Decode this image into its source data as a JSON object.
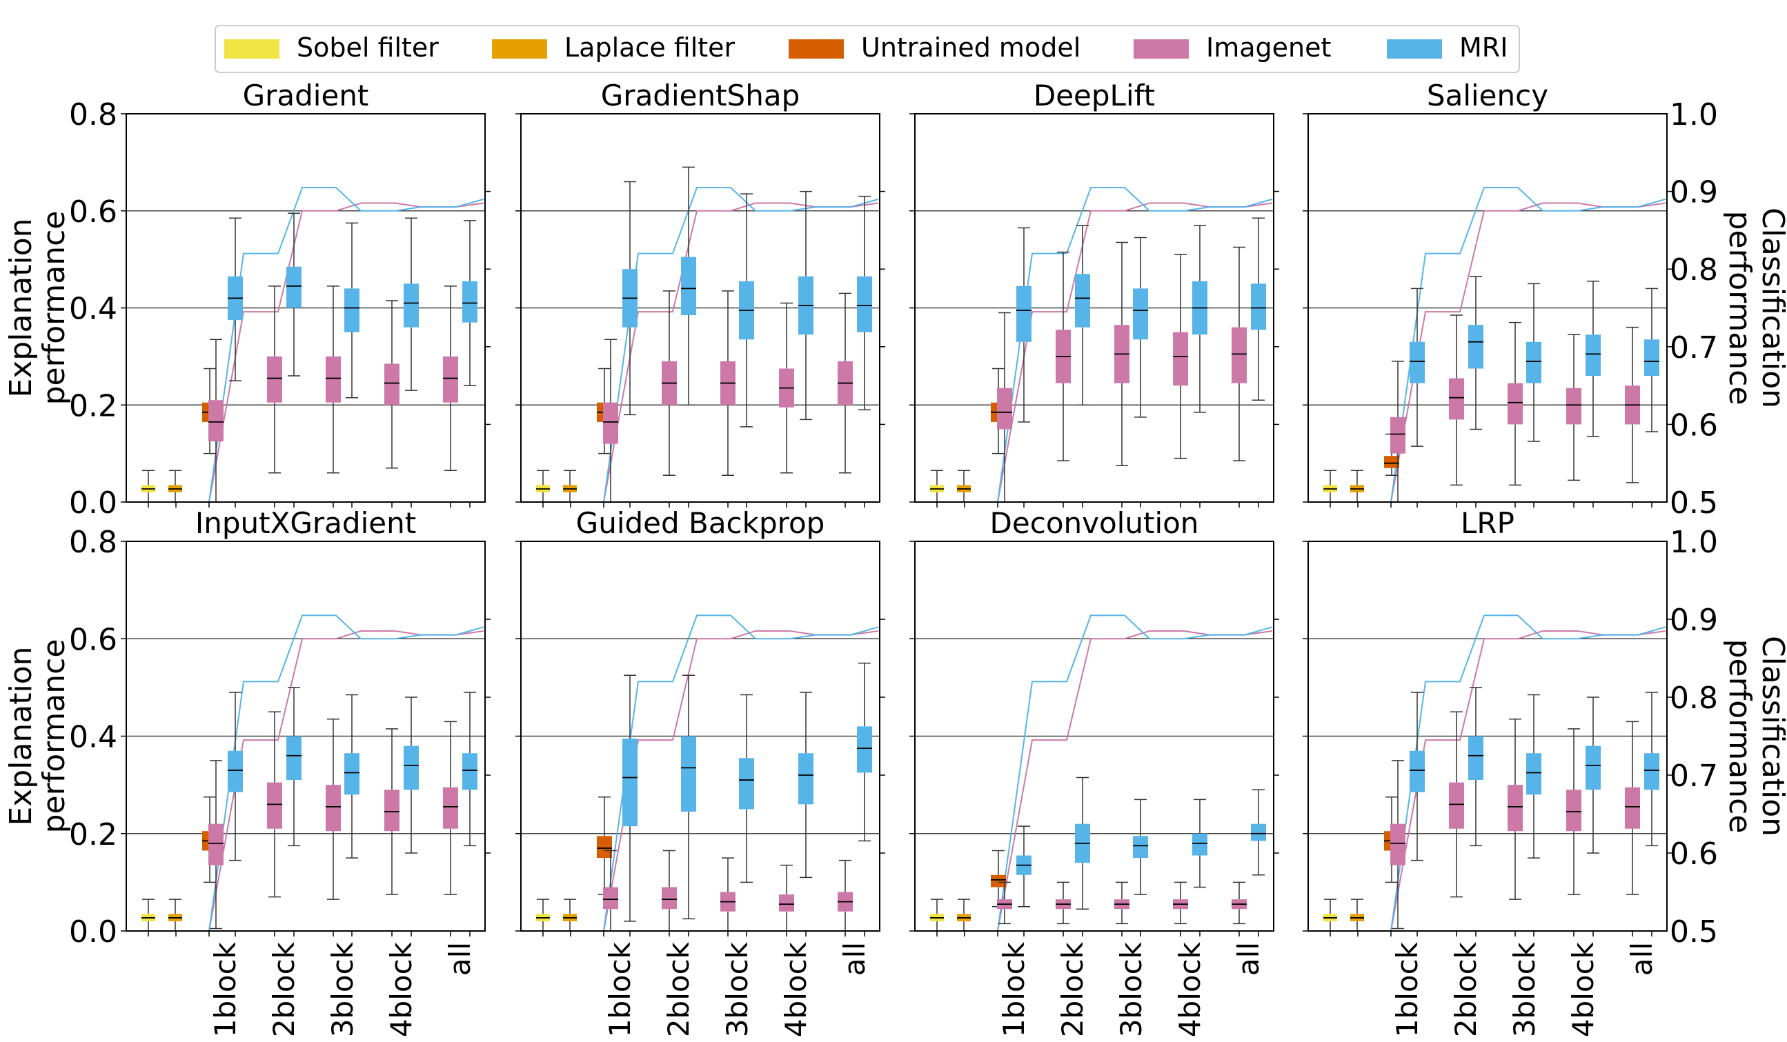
{
  "legend": [
    {
      "label": "Sobel filter",
      "color": "#f0e442"
    },
    {
      "label": "Laplace filter",
      "color": "#e69f00"
    },
    {
      "label": "Untrained model",
      "color": "#d55e00"
    },
    {
      "label": "Imagenet",
      "color": "#cc79a7"
    },
    {
      "label": "MRI",
      "color": "#56b4e9"
    }
  ],
  "left_axis": {
    "label_line1": "Explanation",
    "label_line2": "performance",
    "ticks": [
      "0.0",
      "0.2",
      "0.4",
      "0.6",
      "0.8"
    ],
    "range": [
      0,
      0.8
    ]
  },
  "right_axis": {
    "label_line1": "Classification",
    "label_line2": "performance",
    "ticks": [
      "0.5",
      "0.6",
      "0.7",
      "0.8",
      "0.9",
      "1.0"
    ],
    "range": [
      0.5,
      1.0
    ]
  },
  "x_tick_labels": [
    "1block",
    "2block",
    "3block",
    "4block",
    "all"
  ],
  "chart_data": [
    {
      "type": "box+line",
      "title": "Gradient",
      "boxes": {
        "sobel": [
          0.0,
          0.02,
          0.027,
          0.035,
          0.065
        ],
        "laplace": [
          0.0,
          0.02,
          0.027,
          0.035,
          0.065
        ],
        "untrained": [
          0.1,
          0.165,
          0.185,
          0.205,
          0.275
        ],
        "imagenet": [
          [
            0.0,
            0.125,
            0.165,
            0.21,
            0.335
          ],
          [
            0.06,
            0.205,
            0.255,
            0.3,
            0.445
          ],
          [
            0.06,
            0.205,
            0.255,
            0.3,
            0.445
          ],
          [
            0.07,
            0.2,
            0.245,
            0.285,
            0.415
          ],
          [
            0.065,
            0.205,
            0.255,
            0.3,
            0.445
          ]
        ],
        "mri": [
          [
            0.25,
            0.375,
            0.42,
            0.465,
            0.585
          ],
          [
            0.26,
            0.4,
            0.445,
            0.485,
            0.595
          ],
          [
            0.215,
            0.35,
            0.4,
            0.44,
            0.575
          ],
          [
            0.23,
            0.36,
            0.41,
            0.45,
            0.585
          ],
          [
            0.24,
            0.37,
            0.41,
            0.455,
            0.58
          ]
        ]
      }
    },
    {
      "type": "box+line",
      "title": "GradientShap",
      "boxes": {
        "sobel": [
          0.0,
          0.02,
          0.027,
          0.035,
          0.065
        ],
        "laplace": [
          0.0,
          0.02,
          0.027,
          0.035,
          0.065
        ],
        "untrained": [
          0.1,
          0.165,
          0.185,
          0.205,
          0.275
        ],
        "imagenet": [
          [
            0.0,
            0.12,
            0.165,
            0.205,
            0.335
          ],
          [
            0.055,
            0.2,
            0.245,
            0.29,
            0.435
          ],
          [
            0.055,
            0.2,
            0.245,
            0.29,
            0.435
          ],
          [
            0.06,
            0.195,
            0.235,
            0.275,
            0.41
          ],
          [
            0.06,
            0.2,
            0.245,
            0.29,
            0.43
          ]
        ],
        "mri": [
          [
            0.18,
            0.36,
            0.42,
            0.48,
            0.66
          ],
          [
            0.2,
            0.385,
            0.44,
            0.505,
            0.69
          ],
          [
            0.155,
            0.335,
            0.395,
            0.455,
            0.635
          ],
          [
            0.17,
            0.345,
            0.405,
            0.465,
            0.64
          ],
          [
            0.19,
            0.35,
            0.405,
            0.465,
            0.63
          ]
        ]
      }
    },
    {
      "type": "box+line",
      "title": "DeepLift",
      "boxes": {
        "sobel": [
          0.0,
          0.02,
          0.027,
          0.035,
          0.065
        ],
        "laplace": [
          0.0,
          0.02,
          0.027,
          0.035,
          0.065
        ],
        "untrained": [
          0.1,
          0.165,
          0.185,
          0.205,
          0.275
        ],
        "imagenet": [
          [
            0.0,
            0.15,
            0.185,
            0.235,
            0.39
          ],
          [
            0.085,
            0.245,
            0.3,
            0.355,
            0.515
          ],
          [
            0.075,
            0.245,
            0.305,
            0.365,
            0.535
          ],
          [
            0.09,
            0.24,
            0.3,
            0.35,
            0.51
          ],
          [
            0.085,
            0.245,
            0.305,
            0.36,
            0.525
          ]
        ],
        "mri": [
          [
            0.165,
            0.33,
            0.395,
            0.445,
            0.565
          ],
          [
            0.2,
            0.36,
            0.42,
            0.47,
            0.57
          ],
          [
            0.175,
            0.335,
            0.395,
            0.44,
            0.545
          ],
          [
            0.185,
            0.345,
            0.4,
            0.455,
            0.57
          ],
          [
            0.21,
            0.355,
            0.4,
            0.45,
            0.585
          ]
        ]
      }
    },
    {
      "type": "box+line",
      "title": "Saliency",
      "boxes": {
        "sobel": [
          0.0,
          0.02,
          0.027,
          0.035,
          0.065
        ],
        "laplace": [
          0.0,
          0.02,
          0.027,
          0.035,
          0.065
        ],
        "untrained": [
          0.055,
          0.07,
          0.08,
          0.095,
          0.14
        ],
        "imagenet": [
          [
            0.0,
            0.1,
            0.14,
            0.175,
            0.29
          ],
          [
            0.035,
            0.17,
            0.215,
            0.255,
            0.385
          ],
          [
            0.035,
            0.16,
            0.205,
            0.245,
            0.37
          ],
          [
            0.045,
            0.16,
            0.2,
            0.235,
            0.345
          ],
          [
            0.04,
            0.16,
            0.2,
            0.24,
            0.36
          ]
        ],
        "mri": [
          [
            0.115,
            0.245,
            0.29,
            0.33,
            0.44
          ],
          [
            0.15,
            0.275,
            0.33,
            0.365,
            0.465
          ],
          [
            0.125,
            0.245,
            0.29,
            0.33,
            0.45
          ],
          [
            0.135,
            0.26,
            0.305,
            0.345,
            0.455
          ],
          [
            0.145,
            0.26,
            0.29,
            0.335,
            0.44
          ]
        ]
      }
    },
    {
      "type": "box+line",
      "title": "InputXGradient",
      "boxes": {
        "sobel": [
          0.0,
          0.02,
          0.027,
          0.035,
          0.065
        ],
        "laplace": [
          0.0,
          0.02,
          0.027,
          0.035,
          0.065
        ],
        "untrained": [
          0.1,
          0.165,
          0.185,
          0.205,
          0.275
        ],
        "imagenet": [
          [
            0.005,
            0.135,
            0.18,
            0.22,
            0.35
          ],
          [
            0.07,
            0.21,
            0.26,
            0.305,
            0.45
          ],
          [
            0.065,
            0.205,
            0.255,
            0.3,
            0.435
          ],
          [
            0.075,
            0.205,
            0.245,
            0.29,
            0.415
          ],
          [
            0.075,
            0.21,
            0.255,
            0.295,
            0.43
          ]
        ],
        "mri": [
          [
            0.145,
            0.285,
            0.33,
            0.37,
            0.49
          ],
          [
            0.175,
            0.31,
            0.36,
            0.4,
            0.5
          ],
          [
            0.15,
            0.28,
            0.325,
            0.365,
            0.485
          ],
          [
            0.16,
            0.29,
            0.34,
            0.38,
            0.48
          ],
          [
            0.175,
            0.29,
            0.33,
            0.365,
            0.49
          ]
        ]
      }
    },
    {
      "type": "box+line",
      "title": "Guided Backprop",
      "boxes": {
        "sobel": [
          0.0,
          0.02,
          0.027,
          0.035,
          0.065
        ],
        "laplace": [
          0.0,
          0.02,
          0.027,
          0.035,
          0.065
        ],
        "untrained": [
          0.075,
          0.15,
          0.17,
          0.195,
          0.275
        ],
        "imagenet": [
          [
            0.0,
            0.045,
            0.065,
            0.09,
            0.165
          ],
          [
            0.0,
            0.045,
            0.065,
            0.09,
            0.165
          ],
          [
            0.0,
            0.04,
            0.06,
            0.08,
            0.15
          ],
          [
            0.0,
            0.04,
            0.055,
            0.075,
            0.135
          ],
          [
            0.0,
            0.04,
            0.06,
            0.08,
            0.145
          ]
        ],
        "mri": [
          [
            0.02,
            0.215,
            0.315,
            0.395,
            0.525
          ],
          [
            0.025,
            0.245,
            0.335,
            0.4,
            0.525
          ],
          [
            0.1,
            0.25,
            0.31,
            0.355,
            0.485
          ],
          [
            0.11,
            0.26,
            0.32,
            0.365,
            0.49
          ],
          [
            0.185,
            0.325,
            0.375,
            0.42,
            0.55
          ]
        ]
      }
    },
    {
      "type": "box+line",
      "title": "Deconvolution",
      "boxes": {
        "sobel": [
          0.0,
          0.02,
          0.027,
          0.035,
          0.065
        ],
        "laplace": [
          0.0,
          0.02,
          0.027,
          0.035,
          0.065
        ],
        "untrained": [
          0.05,
          0.09,
          0.105,
          0.115,
          0.165
        ],
        "imagenet": [
          [
            0.015,
            0.045,
            0.055,
            0.065,
            0.1
          ],
          [
            0.015,
            0.045,
            0.055,
            0.065,
            0.1
          ],
          [
            0.015,
            0.045,
            0.055,
            0.065,
            0.1
          ],
          [
            0.015,
            0.045,
            0.055,
            0.065,
            0.1
          ],
          [
            0.015,
            0.045,
            0.055,
            0.065,
            0.1
          ]
        ],
        "mri": [
          [
            0.05,
            0.115,
            0.135,
            0.155,
            0.215
          ],
          [
            0.045,
            0.14,
            0.18,
            0.22,
            0.315
          ],
          [
            0.075,
            0.15,
            0.175,
            0.195,
            0.27
          ],
          [
            0.09,
            0.155,
            0.18,
            0.2,
            0.27
          ],
          [
            0.115,
            0.185,
            0.2,
            0.22,
            0.29
          ]
        ]
      }
    },
    {
      "type": "box+line",
      "title": "LRP",
      "boxes": {
        "sobel": [
          0.0,
          0.02,
          0.027,
          0.035,
          0.065
        ],
        "laplace": [
          0.0,
          0.02,
          0.027,
          0.035,
          0.065
        ],
        "untrained": [
          0.1,
          0.165,
          0.185,
          0.205,
          0.275
        ],
        "imagenet": [
          [
            0.005,
            0.135,
            0.18,
            0.22,
            0.35
          ],
          [
            0.07,
            0.21,
            0.26,
            0.305,
            0.45
          ],
          [
            0.065,
            0.205,
            0.255,
            0.3,
            0.435
          ],
          [
            0.075,
            0.205,
            0.245,
            0.29,
            0.415
          ],
          [
            0.075,
            0.21,
            0.255,
            0.295,
            0.43
          ]
        ],
        "mri": [
          [
            0.145,
            0.285,
            0.33,
            0.37,
            0.49
          ],
          [
            0.175,
            0.31,
            0.36,
            0.4,
            0.5
          ],
          [
            0.15,
            0.28,
            0.325,
            0.365,
            0.485
          ],
          [
            0.16,
            0.29,
            0.34,
            0.38,
            0.48
          ],
          [
            0.175,
            0.29,
            0.33,
            0.365,
            0.49
          ]
        ]
      }
    }
  ],
  "classification_lines": {
    "note": "Classification performance (right axis), same in every panel",
    "x_index": [
      0,
      1,
      2,
      3,
      4,
      5,
      6,
      7,
      8,
      9,
      10,
      11
    ],
    "imagenet": [
      0.5,
      0.5,
      0.5,
      0.745,
      0.745,
      0.875,
      0.875,
      0.885,
      0.885,
      0.88,
      0.88,
      0.885
    ],
    "mri": [
      0.5,
      0.5,
      0.5,
      0.82,
      0.82,
      0.905,
      0.905,
      0.875,
      0.875,
      0.88,
      0.88,
      0.89
    ],
    "note_x": "Line x-positions in slot units: 0=Sobel, 1=Laplace, 2=Untrained, then 1block..all"
  }
}
